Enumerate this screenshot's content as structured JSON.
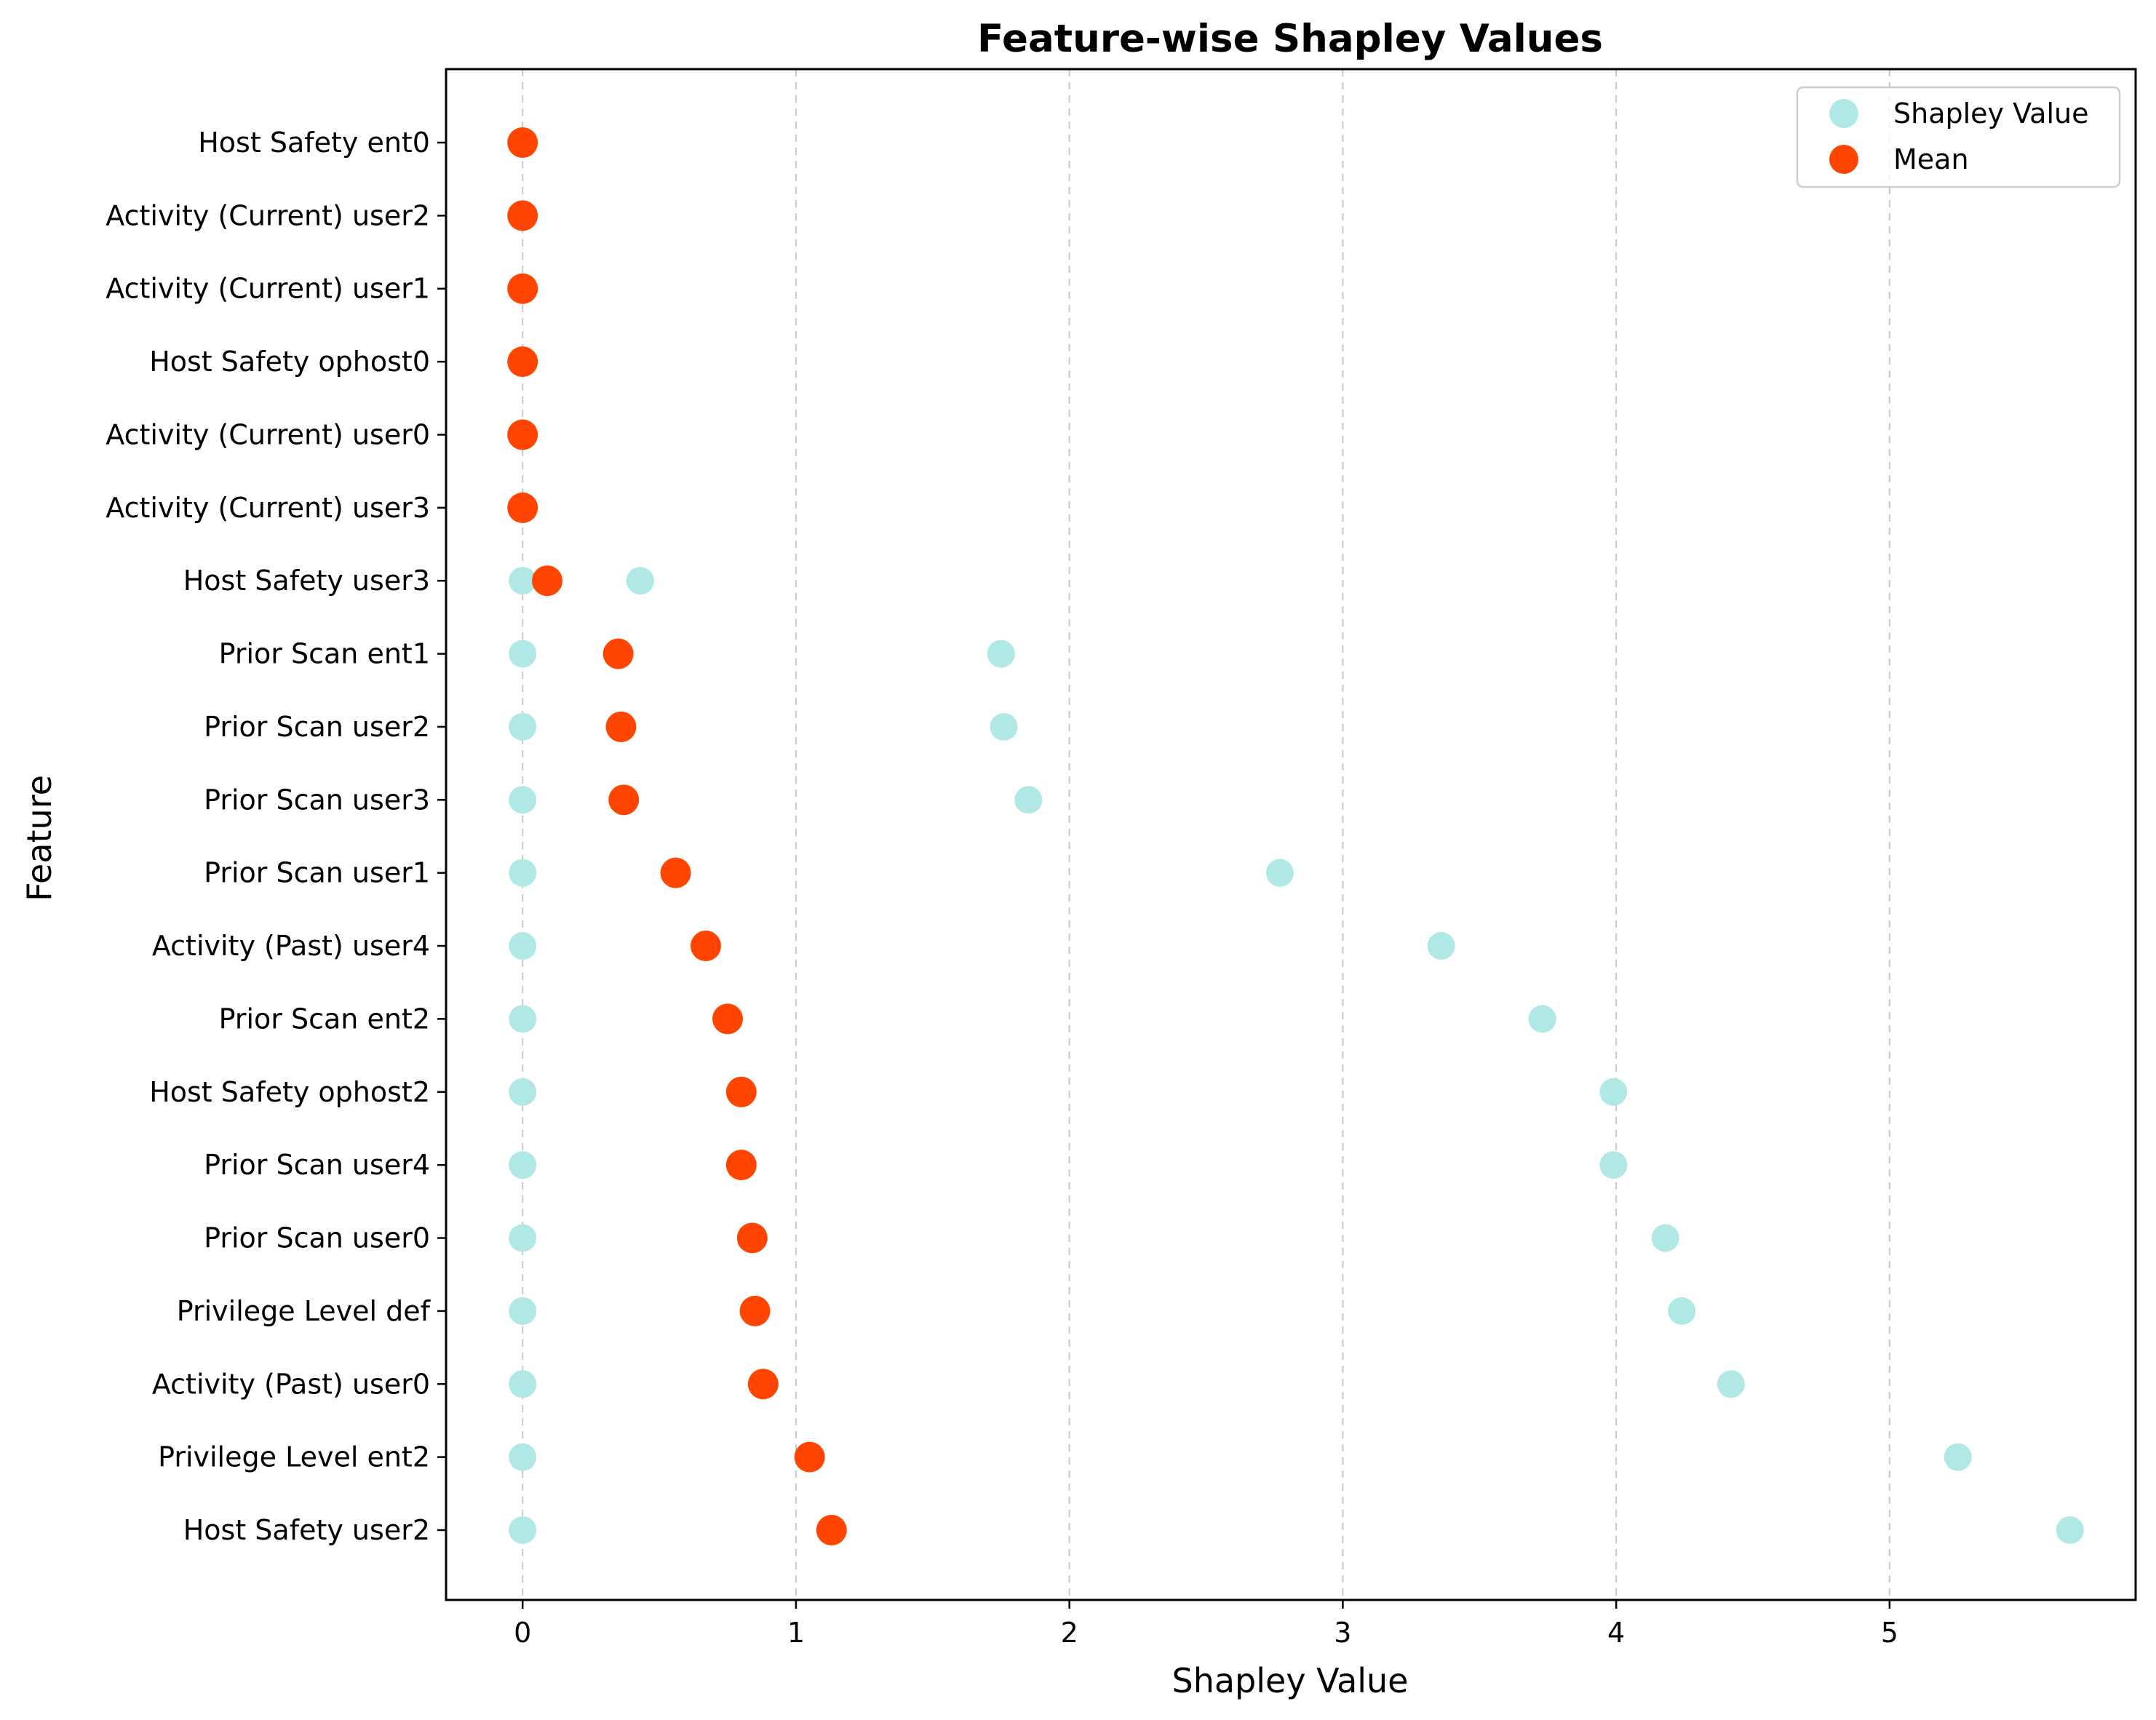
{
  "chart_data": {
    "type": "scatter",
    "title": "Feature-wise Shapley Values",
    "xlabel": "Shapley Value",
    "ylabel": "Feature",
    "xlim": [
      -0.28,
      5.9
    ],
    "xticks": [
      0,
      1,
      2,
      3,
      4,
      5
    ],
    "grid": "x-dashed",
    "legend_position": "top-right",
    "categories": [
      "Host Safety ent0",
      "Activity (Current) user2",
      "Activity (Current) user1",
      "Host Safety ophost0",
      "Activity (Current) user0",
      "Activity (Current) user3",
      "Host Safety user3",
      "Prior Scan ent1",
      "Prior Scan user2",
      "Prior Scan user3",
      "Prior Scan user1",
      "Activity (Past) user4",
      "Prior Scan ent2",
      "Host Safety ophost2",
      "Prior Scan user4",
      "Prior Scan user0",
      "Privilege Level def",
      "Activity (Past) user0",
      "Privilege Level ent2",
      "Host Safety user2"
    ],
    "series": [
      {
        "name": "Shapley Value",
        "color": "#afe8e4",
        "overlap_color": "#5fd3cf",
        "points": [
          [
            0,
            0
          ],
          [
            0,
            0
          ],
          [
            0,
            0
          ],
          [
            0,
            0
          ],
          [
            0,
            0
          ],
          [
            0,
            0
          ],
          [
            0,
            0.43
          ],
          [
            0,
            1.75
          ],
          [
            0,
            1.76
          ],
          [
            0,
            1.85
          ],
          [
            0,
            2.77
          ],
          [
            0,
            3.36
          ],
          [
            0,
            3.73
          ],
          [
            0,
            3.99
          ],
          [
            0,
            3.99
          ],
          [
            0,
            4.18
          ],
          [
            0,
            4.24
          ],
          [
            0,
            4.42
          ],
          [
            0,
            5.25
          ],
          [
            0,
            5.66
          ]
        ]
      },
      {
        "name": "Mean",
        "color": "#ff4500",
        "values": [
          0,
          0,
          0,
          0,
          0,
          0,
          0.09,
          0.35,
          0.36,
          0.37,
          0.56,
          0.67,
          0.75,
          0.8,
          0.8,
          0.84,
          0.85,
          0.88,
          1.05,
          1.13
        ]
      }
    ]
  }
}
